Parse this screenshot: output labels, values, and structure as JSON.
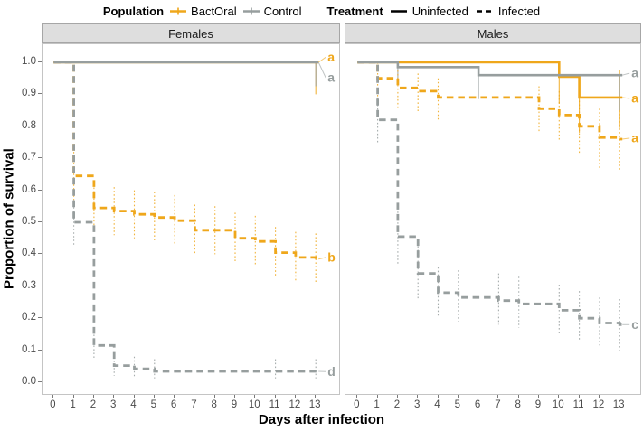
{
  "legend": {
    "population": {
      "title": "Population",
      "items": [
        {
          "label": "BactOral",
          "color": "#EFA71B"
        },
        {
          "label": "Control",
          "color": "#979E9E"
        }
      ]
    },
    "treatment": {
      "title": "Treatment",
      "items": [
        {
          "label": "Uninfected",
          "style": "solid"
        },
        {
          "label": "Infected",
          "style": "dashed"
        }
      ]
    }
  },
  "axes": {
    "y_title": "Proportion of survival",
    "x_title": "Days after infection",
    "y_ticks": [
      "1.0",
      "0.9",
      "0.8",
      "0.7",
      "0.6",
      "0.5",
      "0.4",
      "0.3",
      "0.2",
      "0.1",
      "0.0"
    ],
    "x_ticks": [
      "0",
      "1",
      "2",
      "3",
      "4",
      "5",
      "6",
      "7",
      "8",
      "9",
      "10",
      "11",
      "12",
      "13"
    ]
  },
  "chart_data": {
    "type": "line",
    "subtype": "kaplan-meier-survival-steps",
    "title": "",
    "xlabel": "Days after infection",
    "ylabel": "Proportion of survival",
    "xlim": [
      0,
      13
    ],
    "ylim": [
      0,
      1.0
    ],
    "grid": false,
    "colors": {
      "BactOral": "#EFA71B",
      "Control": "#979E9E"
    },
    "facets": [
      {
        "title": "Females",
        "series": [
          {
            "name": "BactOral Uninfected",
            "population": "BactOral",
            "treatment": "Uninfected",
            "color": "#EFA71B",
            "dash": "solid",
            "end_label": "a",
            "end_label_y": 1.016,
            "points": [
              [
                0,
                1.0
              ],
              [
                13,
                1.0
              ]
            ],
            "errorbars": [
              [
                13,
                0.9,
                1.0
              ]
            ]
          },
          {
            "name": "Control Uninfected",
            "population": "Control",
            "treatment": "Uninfected",
            "color": "#979E9E",
            "dash": "solid",
            "end_label": "a",
            "end_label_y": 0.952,
            "points": [
              [
                0,
                1.0
              ],
              [
                13,
                1.0
              ]
            ],
            "errorbars": [
              [
                13,
                0.925,
                1.0
              ]
            ]
          },
          {
            "name": "BactOral Infected",
            "population": "BactOral",
            "treatment": "Infected",
            "color": "#EFA71B",
            "dash": "dashed",
            "end_label": "b",
            "end_label_y": 0.39,
            "points": [
              [
                0,
                1.0
              ],
              [
                1,
                0.645
              ],
              [
                2,
                0.545
              ],
              [
                3,
                0.535
              ],
              [
                4,
                0.525
              ],
              [
                5,
                0.515
              ],
              [
                6,
                0.505
              ],
              [
                7,
                0.475
              ],
              [
                9,
                0.45
              ],
              [
                10,
                0.44
              ],
              [
                11,
                0.405
              ],
              [
                12,
                0.39
              ],
              [
                13,
                0.385
              ]
            ],
            "errorbars": [
              [
                1,
                0.57,
                0.72
              ],
              [
                2,
                0.47,
                0.62
              ],
              [
                3,
                0.46,
                0.61
              ],
              [
                4,
                0.45,
                0.6
              ],
              [
                5,
                0.44,
                0.595
              ],
              [
                6,
                0.43,
                0.585
              ],
              [
                7,
                0.4,
                0.555
              ],
              [
                8,
                0.4,
                0.55
              ],
              [
                9,
                0.375,
                0.53
              ],
              [
                10,
                0.365,
                0.52
              ],
              [
                11,
                0.33,
                0.485
              ],
              [
                12,
                0.315,
                0.47
              ],
              [
                13,
                0.31,
                0.465
              ]
            ]
          },
          {
            "name": "Control Infected",
            "population": "Control",
            "treatment": "Infected",
            "color": "#979E9E",
            "dash": "dashed",
            "end_label": "d",
            "end_label_y": 0.033,
            "points": [
              [
                0,
                1.0
              ],
              [
                1,
                0.5
              ],
              [
                2,
                0.115
              ],
              [
                3,
                0.052
              ],
              [
                4,
                0.042
              ],
              [
                5,
                0.034
              ],
              [
                13,
                0.034
              ]
            ],
            "errorbars": [
              [
                1,
                0.43,
                0.57
              ],
              [
                2,
                0.075,
                0.16
              ],
              [
                3,
                0.02,
                0.09
              ],
              [
                4,
                0.015,
                0.08
              ],
              [
                5,
                0.012,
                0.072
              ],
              [
                11,
                0.012,
                0.072
              ],
              [
                13,
                0.012,
                0.072
              ]
            ]
          }
        ]
      },
      {
        "title": "Males",
        "series": [
          {
            "name": "BactOral Uninfected",
            "population": "BactOral",
            "treatment": "Uninfected",
            "color": "#EFA71B",
            "dash": "solid",
            "end_label": "a",
            "end_label_y": 0.887,
            "points": [
              [
                0,
                1.0
              ],
              [
                10,
                0.955
              ],
              [
                11,
                0.89
              ],
              [
                13,
                0.89
              ]
            ],
            "errorbars": [
              [
                10,
                0.87,
                1.0
              ],
              [
                11,
                0.78,
                0.955
              ],
              [
                13,
                0.795,
                0.975
              ]
            ]
          },
          {
            "name": "Control Uninfected",
            "population": "Control",
            "treatment": "Uninfected",
            "color": "#979E9E",
            "dash": "solid",
            "end_label": "a",
            "end_label_y": 0.966,
            "points": [
              [
                0,
                1.0
              ],
              [
                2,
                0.985
              ],
              [
                6,
                0.96
              ],
              [
                13,
                0.96
              ]
            ],
            "errorbars": [
              [
                2,
                0.93,
                1.0
              ],
              [
                6,
                0.885,
                0.985
              ],
              [
                13,
                0.85,
                0.96
              ]
            ]
          },
          {
            "name": "BactOral Infected",
            "population": "BactOral",
            "treatment": "Infected",
            "color": "#EFA71B",
            "dash": "dashed",
            "end_label": "a",
            "end_label_y": 0.763,
            "points": [
              [
                0,
                1.0
              ],
              [
                1,
                0.95
              ],
              [
                2,
                0.92
              ],
              [
                3,
                0.91
              ],
              [
                4,
                0.89
              ],
              [
                9,
                0.855
              ],
              [
                10,
                0.835
              ],
              [
                11,
                0.8
              ],
              [
                12,
                0.765
              ],
              [
                13,
                0.76
              ]
            ],
            "errorbars": [
              [
                1,
                0.89,
                1.0
              ],
              [
                2,
                0.86,
                0.975
              ],
              [
                3,
                0.845,
                0.965
              ],
              [
                4,
                0.82,
                0.95
              ],
              [
                9,
                0.78,
                0.925
              ],
              [
                10,
                0.755,
                0.91
              ],
              [
                11,
                0.71,
                0.88
              ],
              [
                12,
                0.67,
                0.855
              ],
              [
                13,
                0.66,
                0.85
              ]
            ]
          },
          {
            "name": "Control Infected",
            "population": "Control",
            "treatment": "Infected",
            "color": "#979E9E",
            "dash": "dashed",
            "end_label": "c",
            "end_label_y": 0.18,
            "points": [
              [
                0,
                1.0
              ],
              [
                1,
                0.82
              ],
              [
                2,
                0.455
              ],
              [
                3,
                0.34
              ],
              [
                4,
                0.28
              ],
              [
                5,
                0.265
              ],
              [
                7,
                0.255
              ],
              [
                8,
                0.245
              ],
              [
                10,
                0.225
              ],
              [
                11,
                0.2
              ],
              [
                12,
                0.185
              ],
              [
                13,
                0.18
              ]
            ],
            "errorbars": [
              [
                1,
                0.75,
                0.89
              ],
              [
                2,
                0.37,
                0.545
              ],
              [
                3,
                0.26,
                0.425
              ],
              [
                4,
                0.205,
                0.36
              ],
              [
                5,
                0.19,
                0.35
              ],
              [
                7,
                0.18,
                0.34
              ],
              [
                8,
                0.17,
                0.33
              ],
              [
                10,
                0.15,
                0.305
              ],
              [
                11,
                0.13,
                0.285
              ],
              [
                12,
                0.115,
                0.265
              ],
              [
                13,
                0.1,
                0.26
              ]
            ]
          }
        ]
      }
    ]
  }
}
